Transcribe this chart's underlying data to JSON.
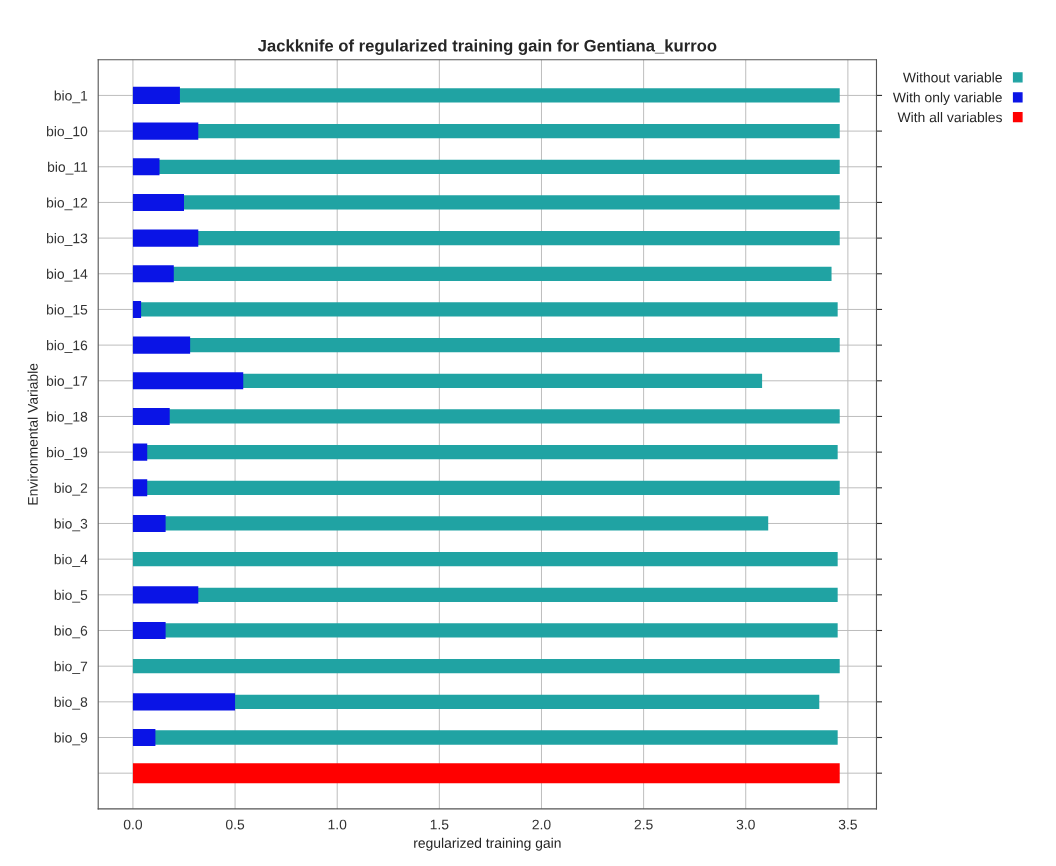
{
  "chart_data": {
    "type": "bar",
    "orientation": "horizontal",
    "title": "Jackknife of regularized training gain for Gentiana_kurroo",
    "xlabel": "regularized training gain",
    "ylabel": "Environmental Variable",
    "categories": [
      "bio_1",
      "bio_10",
      "bio_11",
      "bio_12",
      "bio_13",
      "bio_14",
      "bio_15",
      "bio_16",
      "bio_17",
      "bio_18",
      "bio_19",
      "bio_2",
      "bio_3",
      "bio_4",
      "bio_5",
      "bio_6",
      "bio_7",
      "bio_8",
      "bio_9",
      null
    ],
    "series": [
      {
        "name": "Without variable",
        "color": "#20a3a3",
        "values": [
          3.46,
          3.46,
          3.46,
          3.46,
          3.46,
          3.42,
          3.45,
          3.46,
          3.08,
          3.46,
          3.45,
          3.46,
          3.11,
          3.45,
          3.45,
          3.45,
          3.46,
          3.36,
          3.45,
          null
        ]
      },
      {
        "name": "With only variable",
        "color": "#0a14e6",
        "values": [
          0.23,
          0.32,
          0.13,
          0.25,
          0.32,
          0.2,
          0.04,
          0.28,
          0.54,
          0.18,
          0.07,
          0.07,
          0.16,
          0,
          0.32,
          0.16,
          0,
          0.5,
          0.11,
          null
        ]
      },
      {
        "name": "With all variables",
        "color": "#ff0000",
        "values": [
          null,
          null,
          null,
          null,
          null,
          null,
          null,
          null,
          null,
          null,
          null,
          null,
          null,
          null,
          null,
          null,
          null,
          null,
          null,
          3.46
        ]
      }
    ],
    "xlim": [
      -0.17,
      3.64
    ],
    "xticks": [
      {
        "value": 0,
        "label": "0.0"
      },
      {
        "value": 0.5,
        "label": "0.5"
      },
      {
        "value": 1,
        "label": "1.0"
      },
      {
        "value": 1.5,
        "label": "1.5"
      },
      {
        "value": 2,
        "label": "2.0"
      },
      {
        "value": 2.5,
        "label": "2.5"
      },
      {
        "value": 3,
        "label": "3.0"
      },
      {
        "value": 3.5,
        "label": "3.5"
      }
    ],
    "grid": true,
    "legend": "top right"
  }
}
